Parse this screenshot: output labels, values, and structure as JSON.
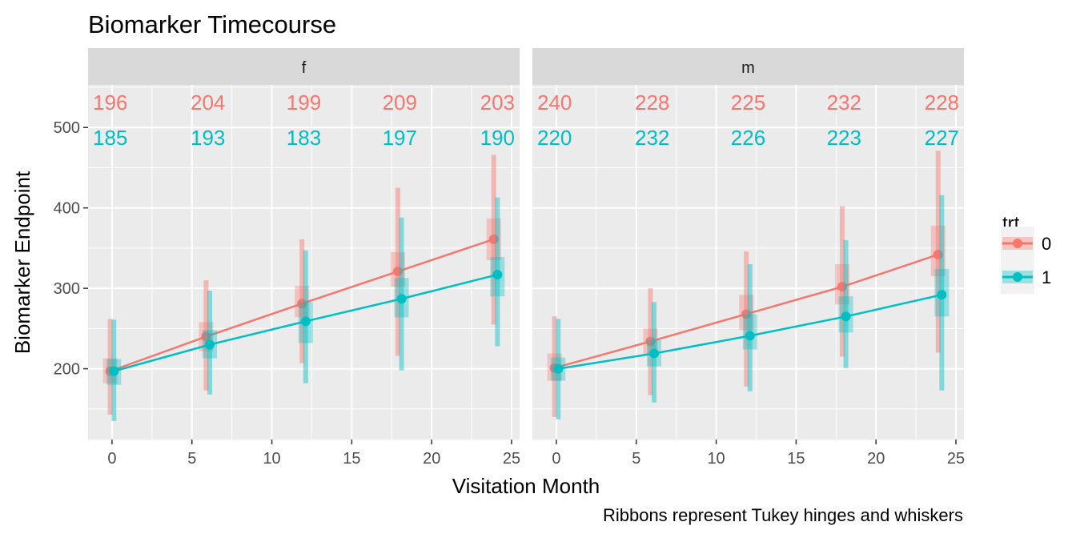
{
  "chart_data": {
    "type": "line",
    "title": "Biomarker Timecourse",
    "xlabel": "Visitation Month",
    "ylabel": "Biomarker Endpoint",
    "caption": "Ribbons represent Tukey hinges and whiskers",
    "xlim": [
      -1.5,
      25.5
    ],
    "ylim": [
      112,
      553
    ],
    "x_ticks": [
      0,
      5,
      10,
      15,
      20,
      25
    ],
    "y_ticks": [
      200,
      300,
      400,
      500
    ],
    "grid": true,
    "legend": {
      "title": "trt",
      "position": "right",
      "entries": [
        {
          "label": "0",
          "color": "#F8766D"
        },
        {
          "label": "1",
          "color": "#00BFC4"
        }
      ]
    },
    "x": [
      0,
      6,
      12,
      18,
      24
    ],
    "panels": [
      {
        "strip_label": "f",
        "counts": [
          {
            "trt": "0",
            "color": "#F8766D",
            "values": [
              "196",
              "204",
              "199",
              "209",
              "203"
            ]
          },
          {
            "trt": "1",
            "color": "#00BFC4",
            "values": [
              "185",
              "193",
              "183",
              "197",
              "190"
            ]
          }
        ],
        "series": [
          {
            "name": "0",
            "color": "#F8766D",
            "median": [
              197,
              240,
              281,
              321,
              361
            ],
            "hinge_lo": [
              182,
              222,
              264,
              302,
              335
            ],
            "hinge_hi": [
              213,
              258,
              303,
              345,
              387
            ],
            "whisker_lo": [
              143,
              173,
              207,
              216,
              255
            ],
            "whisker_hi": [
              262,
              310,
              361,
              425,
              466
            ]
          },
          {
            "name": "1",
            "color": "#00BFC4",
            "median": [
              197,
              230,
              259,
              287,
              317
            ],
            "hinge_lo": [
              180,
              213,
              232,
              264,
              290
            ],
            "hinge_hi": [
              212,
              248,
              283,
              313,
              339
            ],
            "whisker_lo": [
              135,
              168,
              182,
              198,
              228
            ],
            "whisker_hi": [
              261,
              297,
              347,
              388,
              413
            ]
          }
        ]
      },
      {
        "strip_label": "m",
        "counts": [
          {
            "trt": "0",
            "color": "#F8766D",
            "values": [
              "240",
              "228",
              "225",
              "232",
              "228"
            ]
          },
          {
            "trt": "1",
            "color": "#00BFC4",
            "values": [
              "220",
              "232",
              "226",
              "223",
              "227"
            ]
          }
        ],
        "series": [
          {
            "name": "0",
            "color": "#F8766D",
            "median": [
              201,
              234,
              268,
              302,
              342
            ],
            "hinge_lo": [
              185,
              218,
              248,
              280,
              315
            ],
            "hinge_hi": [
              219,
              250,
              292,
              330,
              378
            ],
            "whisker_lo": [
              140,
              167,
              178,
              215,
              220
            ],
            "whisker_hi": [
              265,
              300,
              346,
              402,
              471
            ]
          },
          {
            "name": "1",
            "color": "#00BFC4",
            "median": [
              200,
              219,
              241,
              265,
              292
            ],
            "hinge_lo": [
              185,
              203,
              224,
              245,
              265
            ],
            "hinge_hi": [
              214,
              236,
              268,
              290,
              324
            ],
            "whisker_lo": [
              137,
              158,
              172,
              201,
              173
            ],
            "whisker_hi": [
              262,
              283,
              330,
              360,
              416
            ]
          }
        ]
      }
    ]
  }
}
